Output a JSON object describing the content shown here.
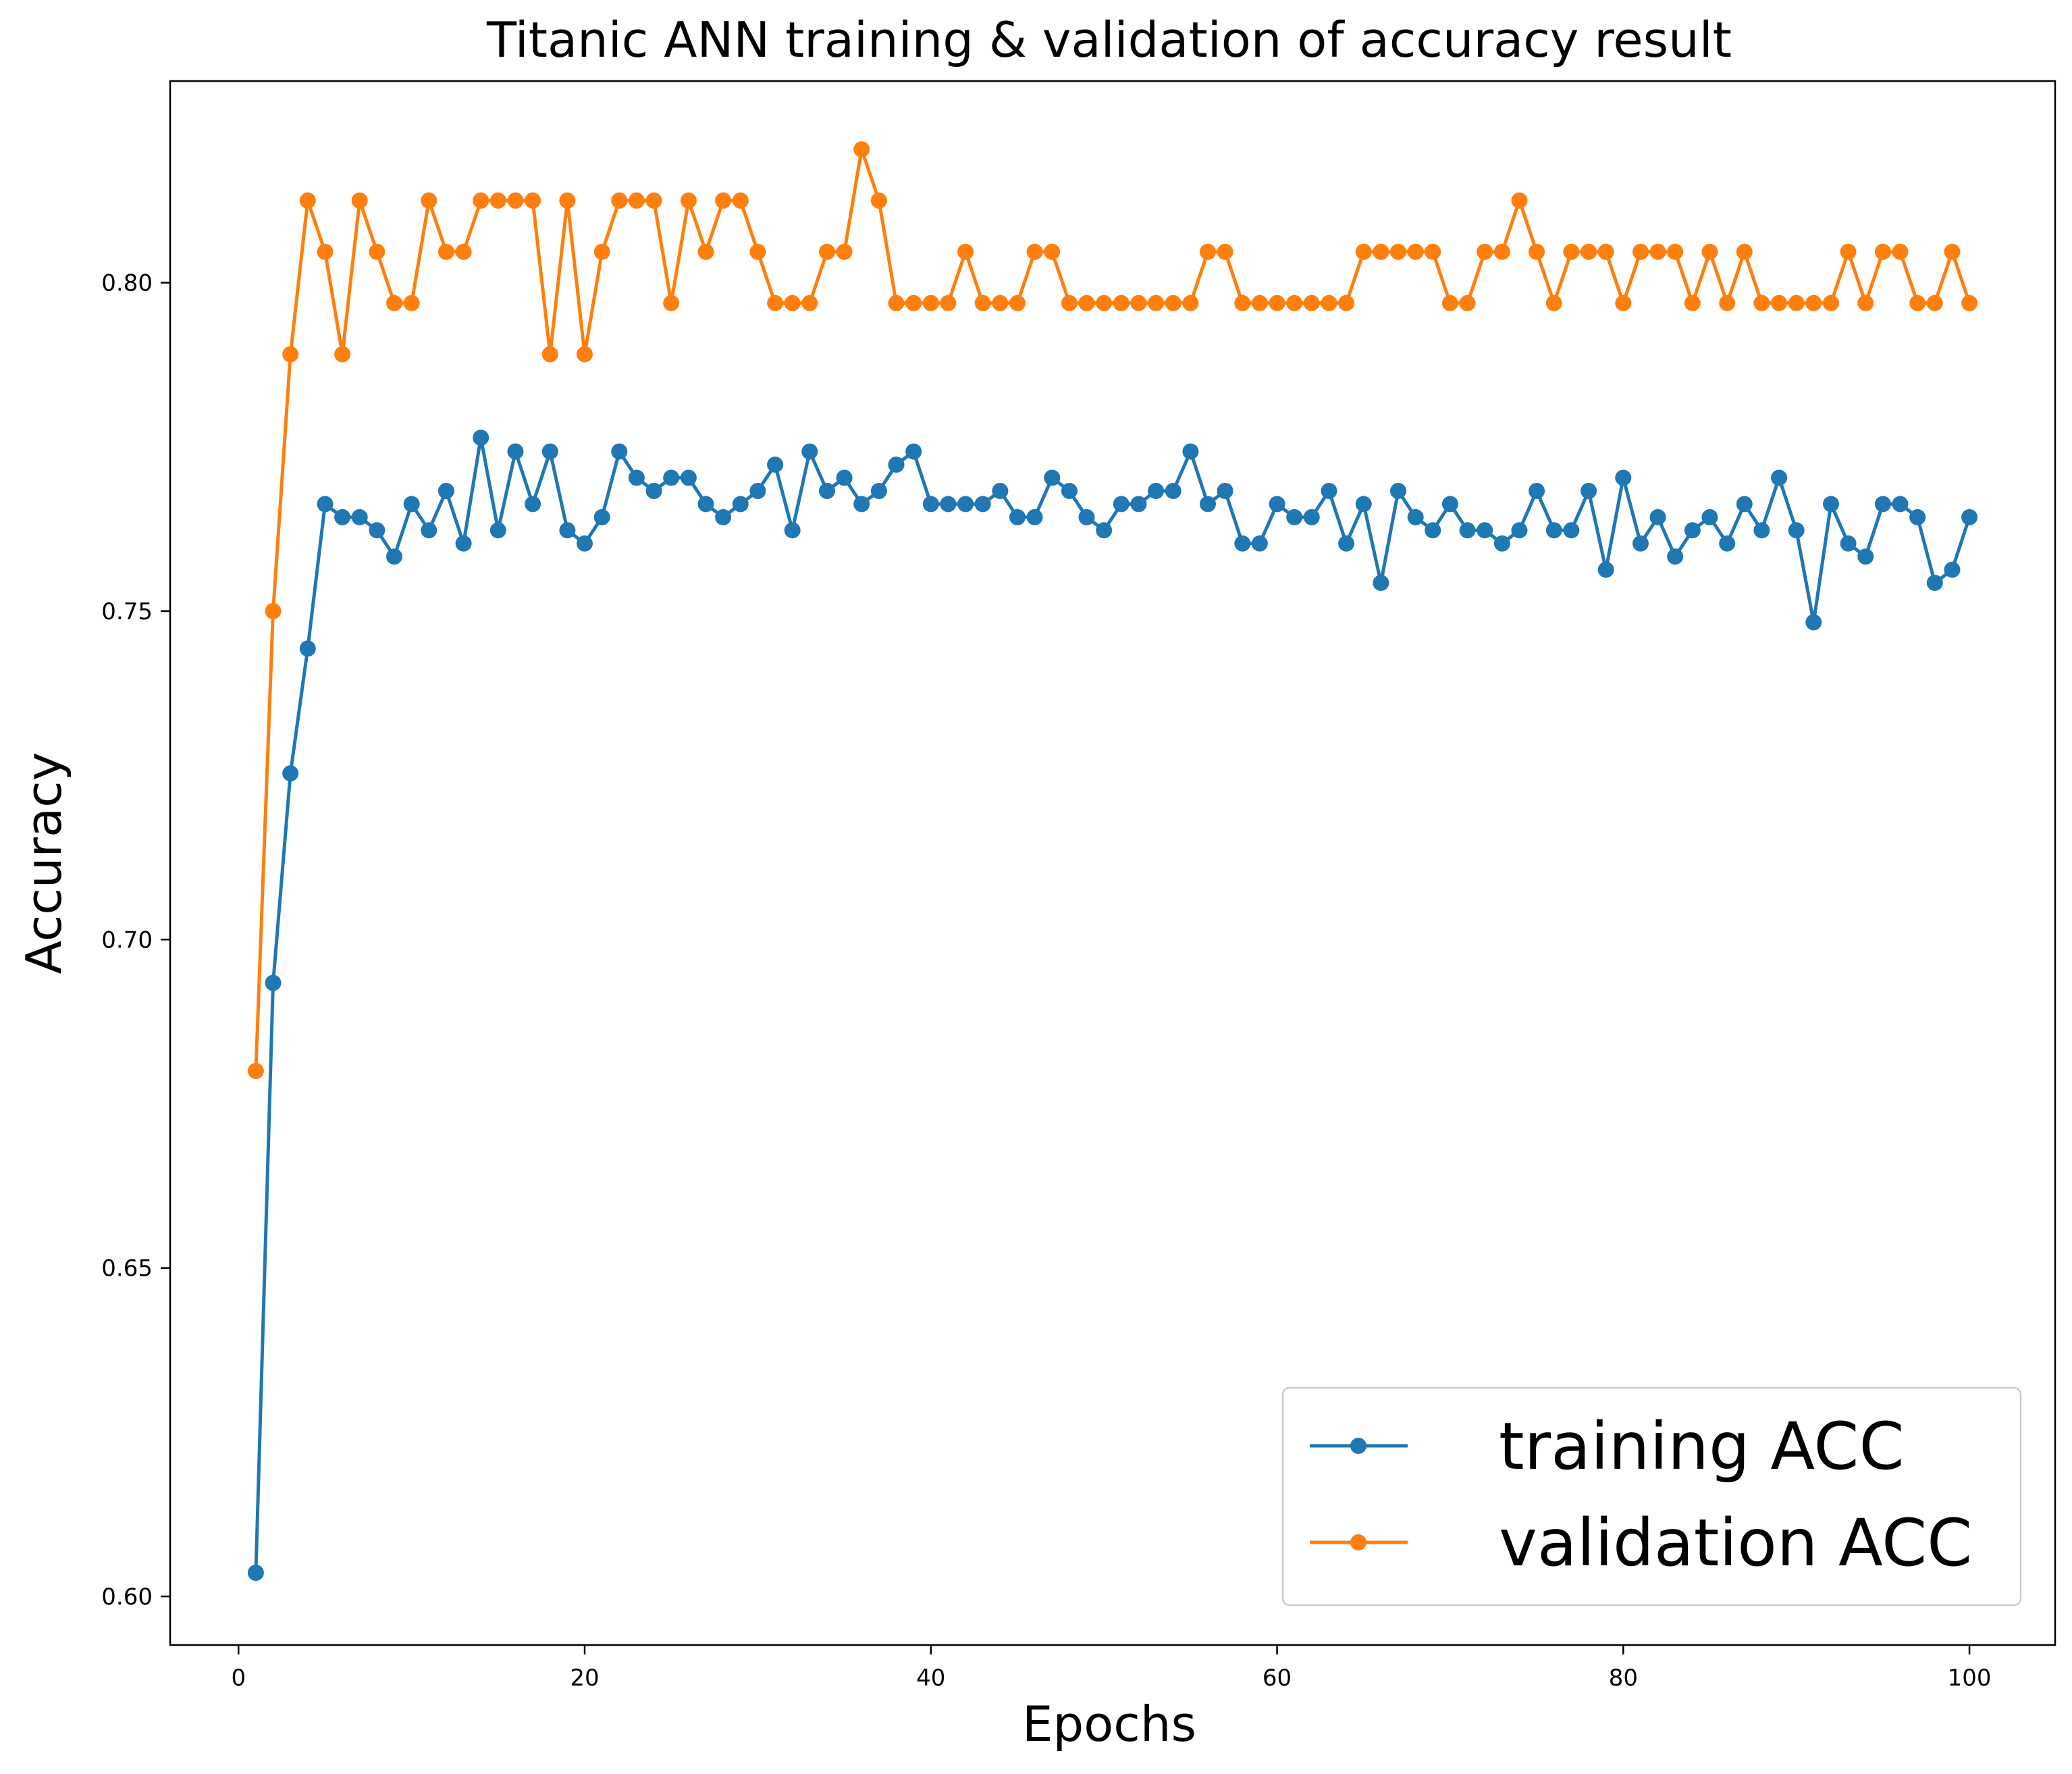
{
  "chart_data": {
    "type": "line",
    "title": "Titanic ANN training & validation of accuracy result",
    "xlabel": "Epochs",
    "ylabel": "Accuracy",
    "xlim": [
      -3.95,
      104.95
    ],
    "ylim": [
      0.5926,
      0.8307
    ],
    "xticks": [
      0,
      20,
      40,
      60,
      80,
      100
    ],
    "xtick_labels": [
      "0",
      "20",
      "40",
      "60",
      "80",
      "100"
    ],
    "yticks": [
      0.6,
      0.65,
      0.7,
      0.75,
      0.8
    ],
    "ytick_labels": [
      "0.60",
      "0.65",
      "0.70",
      "0.75",
      "0.80"
    ],
    "grid": false,
    "legend_position": "lower-right",
    "x": [
      1,
      2,
      3,
      4,
      5,
      6,
      7,
      8,
      9,
      10,
      11,
      12,
      13,
      14,
      15,
      16,
      17,
      18,
      19,
      20,
      21,
      22,
      23,
      24,
      25,
      26,
      27,
      28,
      29,
      30,
      31,
      32,
      33,
      34,
      35,
      36,
      37,
      38,
      39,
      40,
      41,
      42,
      43,
      44,
      45,
      46,
      47,
      48,
      49,
      50,
      51,
      52,
      53,
      54,
      55,
      56,
      57,
      58,
      59,
      60,
      61,
      62,
      63,
      64,
      65,
      66,
      67,
      68,
      69,
      70,
      71,
      72,
      73,
      74,
      75,
      76,
      77,
      78,
      79,
      80,
      81,
      82,
      83,
      84,
      85,
      86,
      87,
      88,
      89,
      90,
      91,
      92,
      93,
      94,
      95,
      96,
      97,
      98,
      99,
      100
    ],
    "series": [
      {
        "name": "training ACC",
        "color": "#1f77b4",
        "values": [
          0.6036,
          0.6934,
          0.7253,
          0.7443,
          0.7663,
          0.7643,
          0.7643,
          0.7623,
          0.7583,
          0.7663,
          0.7623,
          0.7683,
          0.7603,
          0.7764,
          0.7623,
          0.7743,
          0.7663,
          0.7743,
          0.7623,
          0.7603,
          0.7643,
          0.7743,
          0.7703,
          0.7683,
          0.7703,
          0.7703,
          0.7663,
          0.7643,
          0.7663,
          0.7683,
          0.7723,
          0.7623,
          0.7743,
          0.7683,
          0.7703,
          0.7663,
          0.7683,
          0.7723,
          0.7743,
          0.7663,
          0.7663,
          0.7663,
          0.7663,
          0.7683,
          0.7643,
          0.7643,
          0.7703,
          0.7683,
          0.7643,
          0.7623,
          0.7663,
          0.7663,
          0.7683,
          0.7683,
          0.7743,
          0.7663,
          0.7683,
          0.7603,
          0.7603,
          0.7663,
          0.7643,
          0.7643,
          0.7683,
          0.7603,
          0.7663,
          0.7543,
          0.7683,
          0.7643,
          0.7623,
          0.7663,
          0.7623,
          0.7623,
          0.7603,
          0.7623,
          0.7683,
          0.7623,
          0.7623,
          0.7683,
          0.7563,
          0.7703,
          0.7603,
          0.7643,
          0.7583,
          0.7623,
          0.7643,
          0.7603,
          0.7663,
          0.7623,
          0.7703,
          0.7623,
          0.7483,
          0.7663,
          0.7603,
          0.7583,
          0.7663,
          0.7663,
          0.7643,
          0.7543,
          0.7563,
          0.7643
        ]
      },
      {
        "name": "validation ACC",
        "color": "#ff7f0e",
        "values": [
          0.68,
          0.75,
          0.7891,
          0.8125,
          0.8047,
          0.7891,
          0.8125,
          0.8047,
          0.7969,
          0.7969,
          0.8125,
          0.8047,
          0.8047,
          0.8125,
          0.8125,
          0.8125,
          0.8125,
          0.7891,
          0.8125,
          0.7891,
          0.8047,
          0.8125,
          0.8125,
          0.8125,
          0.7969,
          0.8125,
          0.8047,
          0.8125,
          0.8125,
          0.8047,
          0.7969,
          0.7969,
          0.7969,
          0.8047,
          0.8047,
          0.8203,
          0.8125,
          0.7969,
          0.7969,
          0.7969,
          0.7969,
          0.8047,
          0.7969,
          0.7969,
          0.7969,
          0.8047,
          0.8047,
          0.7969,
          0.7969,
          0.7969,
          0.7969,
          0.7969,
          0.7969,
          0.7969,
          0.7969,
          0.8047,
          0.8047,
          0.7969,
          0.7969,
          0.7969,
          0.7969,
          0.7969,
          0.7969,
          0.7969,
          0.8047,
          0.8047,
          0.8047,
          0.8047,
          0.8047,
          0.7969,
          0.7969,
          0.8047,
          0.8047,
          0.8125,
          0.8047,
          0.7969,
          0.8047,
          0.8047,
          0.8047,
          0.7969,
          0.8047,
          0.8047,
          0.8047,
          0.7969,
          0.8047,
          0.7969,
          0.8047,
          0.7969,
          0.7969,
          0.7969,
          0.7969,
          0.7969,
          0.8047,
          0.7969,
          0.8047,
          0.8047,
          0.7969,
          0.7969,
          0.8047,
          0.7969
        ]
      }
    ]
  }
}
